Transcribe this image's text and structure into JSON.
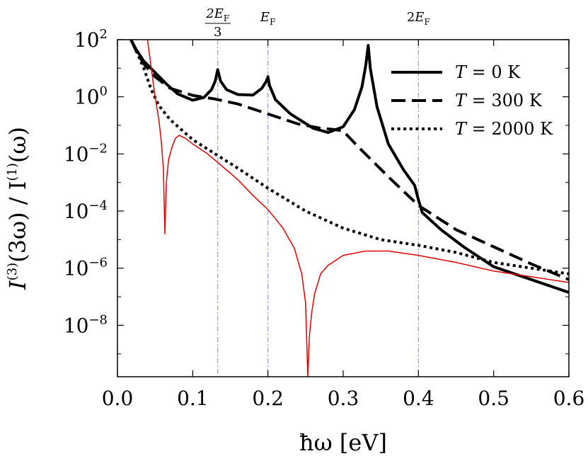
{
  "chart_data": {
    "type": "line",
    "xlabel": "ħω [eV]",
    "ylabel_parts": [
      "I",
      "(3)",
      "(3ω) / I",
      "(1)",
      "(ω)"
    ],
    "xlim": [
      0.0,
      0.6
    ],
    "ylim_log10": [
      -9.8,
      2
    ],
    "y_scale": "log",
    "x_ticks": [
      0.0,
      0.1,
      0.2,
      0.3,
      0.4,
      0.5,
      0.6
    ],
    "x_tick_labels": [
      "0.0",
      "0.1",
      "0.2",
      "0.3",
      "0.4",
      "0.5",
      "0.6"
    ],
    "y_ticks_exp": [
      2,
      0,
      -2,
      -4,
      -6,
      -8
    ],
    "y_tick_base": "10",
    "y_tick_exp_labels": [
      "2",
      "0",
      "−2",
      "−4",
      "−6",
      "−8"
    ],
    "grid": false,
    "legend_position": "top-right",
    "vlines": [
      {
        "x": 0.1333,
        "num": "2E",
        "num_sub": "F",
        "den": "3"
      },
      {
        "x": 0.2,
        "label": "E",
        "label_sub": "F"
      },
      {
        "x": 0.4,
        "label": "2E",
        "label_sub": "F"
      }
    ],
    "series": [
      {
        "name": "T = 0 K",
        "legend_parts": [
          "T",
          " = 0 K"
        ],
        "style": "solid",
        "color": "#000000",
        "width": 4,
        "x": [
          0.018,
          0.025,
          0.035,
          0.05,
          0.065,
          0.08,
          0.1,
          0.115,
          0.125,
          0.13,
          0.1333,
          0.137,
          0.145,
          0.16,
          0.18,
          0.192,
          0.198,
          0.2,
          0.202,
          0.21,
          0.23,
          0.26,
          0.28,
          0.3,
          0.315,
          0.325,
          0.33,
          0.3333,
          0.336,
          0.345,
          0.36,
          0.38,
          0.395,
          0.4,
          0.405,
          0.43,
          0.46,
          0.5,
          0.55,
          0.6
        ],
        "log10": [
          2.0,
          1.65,
          1.25,
          0.85,
          0.45,
          0.1,
          -0.12,
          -0.02,
          0.25,
          0.55,
          0.95,
          0.55,
          0.25,
          0.08,
          0.06,
          0.3,
          0.55,
          0.7,
          0.4,
          -0.1,
          -0.6,
          -1.1,
          -1.25,
          -1.05,
          -0.45,
          0.35,
          1.1,
          1.8,
          1.0,
          -0.35,
          -1.65,
          -2.55,
          -3.1,
          -3.6,
          -4.05,
          -4.65,
          -5.25,
          -5.95,
          -6.4,
          -6.85
        ]
      },
      {
        "name": "T = 300 K",
        "legend_parts": [
          "T",
          " = 300 K"
        ],
        "style": "dashed",
        "color": "#000000",
        "width": 4,
        "x": [
          0.018,
          0.025,
          0.035,
          0.05,
          0.07,
          0.1,
          0.13,
          0.16,
          0.2,
          0.24,
          0.27,
          0.29,
          0.3,
          0.32,
          0.36,
          0.4,
          0.45,
          0.5,
          0.55,
          0.6
        ],
        "log10": [
          2.0,
          1.6,
          1.15,
          0.7,
          0.3,
          0.05,
          -0.08,
          -0.25,
          -0.6,
          -0.95,
          -1.1,
          -1.15,
          -1.2,
          -1.75,
          -2.8,
          -3.8,
          -4.65,
          -5.25,
          -5.85,
          -6.4
        ]
      },
      {
        "name": "T = 2000 K",
        "legend_parts": [
          "T",
          " = 2000 K"
        ],
        "style": "dotted",
        "color": "#000000",
        "width": 4,
        "x": [
          0.018,
          0.025,
          0.035,
          0.045,
          0.055,
          0.07,
          0.1,
          0.13,
          0.16,
          0.2,
          0.25,
          0.3,
          0.35,
          0.4,
          0.45,
          0.5,
          0.55,
          0.6
        ],
        "log10": [
          2.0,
          1.6,
          1.0,
          0.25,
          -0.3,
          -0.8,
          -1.5,
          -2.0,
          -2.5,
          -3.2,
          -4.0,
          -4.6,
          -5.0,
          -5.2,
          -5.45,
          -5.8,
          -6.0,
          -6.2
        ]
      },
      {
        "style": "solid",
        "color": "#e00000",
        "width": 1.5,
        "x": [
          0.04,
          0.045,
          0.05,
          0.055,
          0.058,
          0.061,
          0.063,
          0.065,
          0.068,
          0.072,
          0.077,
          0.082,
          0.09,
          0.1,
          0.12,
          0.14,
          0.16,
          0.18,
          0.2,
          0.22,
          0.235,
          0.245,
          0.25,
          0.253,
          0.255,
          0.258,
          0.262,
          0.27,
          0.28,
          0.3,
          0.33,
          0.36,
          0.4,
          0.45,
          0.5,
          0.55,
          0.6
        ],
        "log10": [
          2.0,
          1.0,
          0.0,
          -0.8,
          -1.5,
          -2.5,
          -4.8,
          -3.0,
          -2.2,
          -1.8,
          -1.45,
          -1.35,
          -1.45,
          -1.65,
          -2.0,
          -2.45,
          -2.9,
          -3.45,
          -3.95,
          -4.6,
          -5.3,
          -6.2,
          -7.2,
          -9.8,
          -8.4,
          -7.6,
          -6.9,
          -6.2,
          -5.9,
          -5.55,
          -5.4,
          -5.4,
          -5.55,
          -5.8,
          -6.1,
          -6.3,
          -6.5
        ]
      }
    ]
  }
}
